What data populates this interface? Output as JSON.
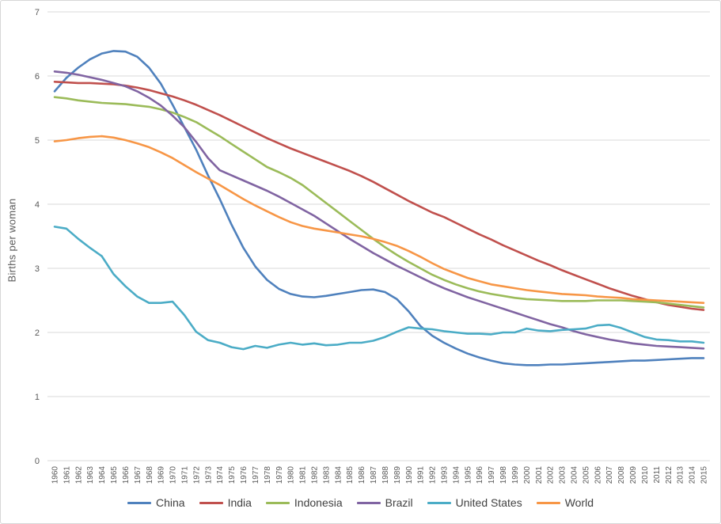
{
  "chart_data": {
    "type": "line",
    "title": "",
    "xlabel": "",
    "ylabel": "Births per woman",
    "ylim": [
      0,
      7
    ],
    "yticks": [
      0,
      1,
      2,
      3,
      4,
      5,
      6,
      7
    ],
    "grid": "horizontal",
    "legend_position": "bottom",
    "x": [
      1960,
      1961,
      1962,
      1963,
      1964,
      1965,
      1966,
      1967,
      1968,
      1969,
      1970,
      1971,
      1972,
      1973,
      1974,
      1975,
      1976,
      1977,
      1978,
      1979,
      1980,
      1981,
      1982,
      1983,
      1984,
      1985,
      1986,
      1987,
      1988,
      1989,
      1990,
      1991,
      1992,
      1993,
      1994,
      1995,
      1996,
      1997,
      1998,
      1999,
      2000,
      2001,
      2002,
      2003,
      2004,
      2005,
      2006,
      2007,
      2008,
      2009,
      2010,
      2011,
      2012,
      2013,
      2014,
      2015
    ],
    "series": [
      {
        "name": "China",
        "color": "#4F81BD",
        "values": [
          5.76,
          5.97,
          6.13,
          6.26,
          6.35,
          6.39,
          6.38,
          6.3,
          6.13,
          5.88,
          5.55,
          5.2,
          4.85,
          4.45,
          4.08,
          3.68,
          3.32,
          3.03,
          2.82,
          2.68,
          2.6,
          2.56,
          2.55,
          2.57,
          2.6,
          2.63,
          2.66,
          2.67,
          2.63,
          2.52,
          2.33,
          2.1,
          1.95,
          1.84,
          1.75,
          1.67,
          1.61,
          1.56,
          1.52,
          1.5,
          1.49,
          1.49,
          1.5,
          1.5,
          1.51,
          1.52,
          1.53,
          1.54,
          1.55,
          1.56,
          1.56,
          1.57,
          1.58,
          1.59,
          1.6,
          1.6
        ]
      },
      {
        "name": "India",
        "color": "#C0504D",
        "values": [
          5.91,
          5.9,
          5.89,
          5.89,
          5.88,
          5.87,
          5.85,
          5.82,
          5.78,
          5.73,
          5.68,
          5.62,
          5.55,
          5.47,
          5.39,
          5.3,
          5.21,
          5.12,
          5.03,
          4.95,
          4.87,
          4.8,
          4.73,
          4.66,
          4.59,
          4.52,
          4.44,
          4.35,
          4.25,
          4.15,
          4.05,
          3.96,
          3.87,
          3.8,
          3.71,
          3.62,
          3.53,
          3.45,
          3.36,
          3.28,
          3.2,
          3.12,
          3.05,
          2.97,
          2.9,
          2.83,
          2.76,
          2.69,
          2.63,
          2.57,
          2.52,
          2.47,
          2.43,
          2.4,
          2.37,
          2.35
        ]
      },
      {
        "name": "Indonesia",
        "color": "#9BBB59",
        "values": [
          5.67,
          5.65,
          5.62,
          5.6,
          5.58,
          5.57,
          5.56,
          5.54,
          5.52,
          5.48,
          5.43,
          5.36,
          5.28,
          5.17,
          5.06,
          4.94,
          4.82,
          4.7,
          4.58,
          4.5,
          4.41,
          4.3,
          4.16,
          4.02,
          3.88,
          3.74,
          3.6,
          3.46,
          3.33,
          3.21,
          3.1,
          3.0,
          2.9,
          2.82,
          2.75,
          2.69,
          2.64,
          2.6,
          2.57,
          2.54,
          2.52,
          2.51,
          2.5,
          2.49,
          2.49,
          2.49,
          2.5,
          2.5,
          2.5,
          2.49,
          2.48,
          2.47,
          2.45,
          2.43,
          2.41,
          2.39
        ]
      },
      {
        "name": "Brazil",
        "color": "#8064A2",
        "values": [
          6.07,
          6.05,
          6.02,
          5.98,
          5.94,
          5.89,
          5.84,
          5.76,
          5.66,
          5.54,
          5.38,
          5.2,
          4.97,
          4.72,
          4.53,
          4.45,
          4.37,
          4.29,
          4.21,
          4.12,
          4.02,
          3.92,
          3.82,
          3.7,
          3.58,
          3.46,
          3.35,
          3.24,
          3.14,
          3.04,
          2.95,
          2.86,
          2.77,
          2.69,
          2.62,
          2.55,
          2.49,
          2.43,
          2.37,
          2.31,
          2.25,
          2.19,
          2.13,
          2.08,
          2.02,
          1.97,
          1.93,
          1.89,
          1.86,
          1.83,
          1.81,
          1.79,
          1.78,
          1.77,
          1.76,
          1.75
        ]
      },
      {
        "name": "United States",
        "color": "#4BACC6",
        "values": [
          3.65,
          3.62,
          3.46,
          3.32,
          3.19,
          2.91,
          2.72,
          2.56,
          2.46,
          2.46,
          2.48,
          2.27,
          2.01,
          1.88,
          1.84,
          1.77,
          1.74,
          1.79,
          1.76,
          1.81,
          1.84,
          1.81,
          1.83,
          1.8,
          1.81,
          1.84,
          1.84,
          1.87,
          1.93,
          2.01,
          2.08,
          2.06,
          2.05,
          2.02,
          2.0,
          1.98,
          1.98,
          1.97,
          2.0,
          2.0,
          2.06,
          2.03,
          2.02,
          2.04,
          2.05,
          2.06,
          2.11,
          2.12,
          2.07,
          2.0,
          1.93,
          1.89,
          1.88,
          1.86,
          1.86,
          1.84
        ]
      },
      {
        "name": "World",
        "color": "#F79646",
        "values": [
          4.98,
          5.0,
          5.03,
          5.05,
          5.06,
          5.04,
          5.0,
          4.95,
          4.89,
          4.81,
          4.72,
          4.61,
          4.5,
          4.4,
          4.3,
          4.19,
          4.08,
          3.98,
          3.89,
          3.8,
          3.72,
          3.66,
          3.62,
          3.59,
          3.56,
          3.53,
          3.5,
          3.46,
          3.41,
          3.35,
          3.27,
          3.18,
          3.08,
          2.99,
          2.92,
          2.85,
          2.8,
          2.75,
          2.72,
          2.69,
          2.66,
          2.64,
          2.62,
          2.6,
          2.59,
          2.58,
          2.56,
          2.55,
          2.54,
          2.52,
          2.51,
          2.5,
          2.49,
          2.48,
          2.47,
          2.46
        ]
      }
    ]
  },
  "colors": {
    "background": "#FFFFFF",
    "gridline": "#D9D9D9",
    "axis_text": "#595959",
    "legend_text": "#404040",
    "frame_border": "#D6D6D6"
  }
}
